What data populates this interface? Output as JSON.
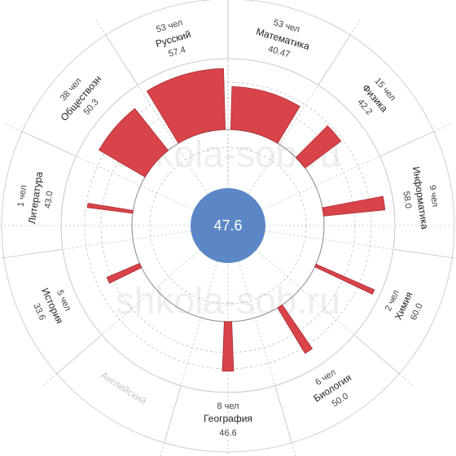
{
  "chart_data": {
    "type": "polar-bar",
    "center_value": "47.6",
    "watermark": "shkola-sob.ru",
    "colors": {
      "bar": "#d9434a",
      "bar_edge": "#a92f36",
      "center": "#5b87c6",
      "grid": "#bdbdbd",
      "muted": "#c6c6c6"
    },
    "subjects": [
      {
        "name": "Математика",
        "count": "53 чел",
        "score": "40.47",
        "value": 40.47
      },
      {
        "name": "Физика",
        "count": "15 чел",
        "score": "42.2",
        "value": 42.2
      },
      {
        "name": "Информатика",
        "count": "9 чел",
        "score": "58.0",
        "value": 58.0
      },
      {
        "name": "Химия",
        "count": "2 чел",
        "score": "60.0",
        "value": 60.0
      },
      {
        "name": "Биология",
        "count": "6 чел",
        "score": "50.0",
        "value": 50.0
      },
      {
        "name": "География",
        "count": "8 чел",
        "score": "46.6",
        "value": 46.6
      },
      {
        "name": "Английский",
        "count": "",
        "score": "",
        "value": null
      },
      {
        "name": "История",
        "count": "5 чел",
        "score": "33.6",
        "value": 33.6
      },
      {
        "name": "Литература",
        "count": "1 чел",
        "score": "43.0",
        "value": 43.0
      },
      {
        "name": "Обществозн",
        "count": "38 чел",
        "score": "50.3",
        "value": 50.3
      },
      {
        "name": "Русский",
        "count": "53 чел",
        "score": "57.4",
        "value": 57.4
      }
    ]
  }
}
